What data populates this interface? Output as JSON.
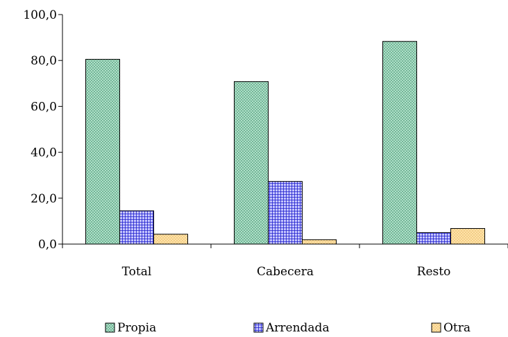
{
  "chart_data": {
    "type": "bar",
    "categories": [
      "Total",
      "Cabecera",
      "Resto"
    ],
    "series": [
      {
        "name": "Propia",
        "values": [
          80.5,
          70.8,
          88.3
        ],
        "color": "#b7e6cf",
        "pattern": "#4f9a79"
      },
      {
        "name": "Arrendada",
        "values": [
          14.5,
          27.3,
          5.0
        ],
        "color": "#c6c6ff",
        "pattern": "#1d1dcc"
      },
      {
        "name": "Otra",
        "values": [
          4.3,
          1.9,
          6.8
        ],
        "color": "#ffe2a8",
        "pattern": "#d19c3a"
      }
    ],
    "ylim": [
      0,
      100
    ],
    "yticks": [
      "0,0",
      "20,0",
      "40,0",
      "60,0",
      "80,0",
      "100,0"
    ],
    "legend_position": "bottom",
    "grid": false
  }
}
